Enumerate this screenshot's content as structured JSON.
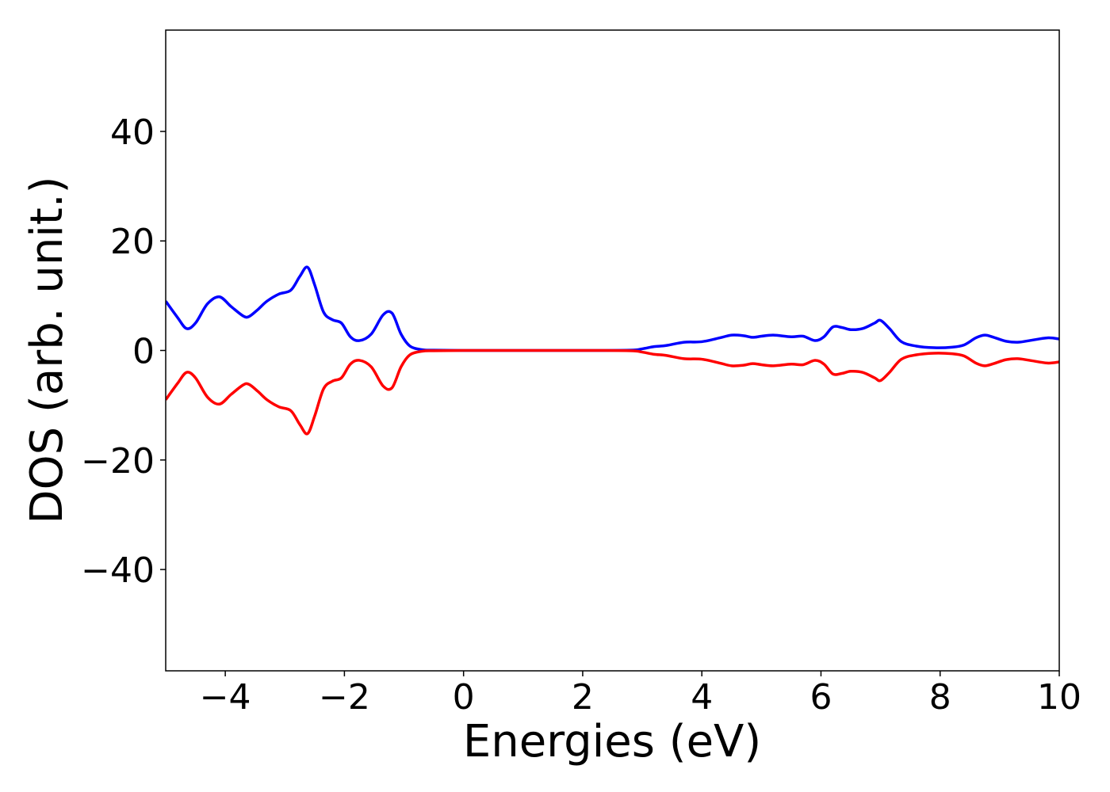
{
  "chart_data": {
    "type": "line",
    "title": "",
    "xlabel": "Energies (eV)",
    "ylabel": "DOS (arb. unit.)",
    "xlim": [
      -5,
      10
    ],
    "ylim": [
      -58.5,
      58.5
    ],
    "xticks": [
      -4,
      -2,
      0,
      2,
      4,
      6,
      8,
      10
    ],
    "xtick_labels": [
      "−4",
      "−2",
      "0",
      "2",
      "4",
      "6",
      "8",
      "10"
    ],
    "yticks": [
      -40,
      -20,
      0,
      20,
      40
    ],
    "ytick_labels": [
      "−40",
      "−20",
      "0",
      "20",
      "40"
    ],
    "grid": false,
    "legend": "none",
    "series": [
      {
        "color": "#0000ff",
        "x": [
          -5.0,
          -4.8,
          -4.65,
          -4.5,
          -4.3,
          -4.1,
          -3.9,
          -3.7,
          -3.6,
          -3.45,
          -3.3,
          -3.1,
          -2.9,
          -2.75,
          -2.62,
          -2.5,
          -2.35,
          -2.2,
          -2.05,
          -1.9,
          -1.75,
          -1.55,
          -1.35,
          -1.2,
          -1.05,
          -0.9,
          -0.7,
          -0.5,
          0.0,
          1.0,
          2.0,
          2.8,
          3.0,
          3.2,
          3.4,
          3.7,
          4.0,
          4.3,
          4.5,
          4.7,
          4.85,
          5.0,
          5.2,
          5.5,
          5.7,
          5.9,
          6.05,
          6.2,
          6.35,
          6.5,
          6.7,
          6.9,
          7.0,
          7.15,
          7.35,
          7.6,
          7.9,
          8.2,
          8.4,
          8.6,
          8.75,
          8.9,
          9.1,
          9.3,
          9.5,
          9.8,
          10.0
        ],
        "values": [
          9.0,
          6.0,
          4.0,
          5.0,
          8.5,
          9.8,
          8.0,
          6.3,
          6.2,
          7.5,
          9.0,
          10.3,
          11.0,
          13.5,
          15.2,
          12.0,
          7.0,
          5.6,
          5.0,
          2.5,
          1.8,
          3.0,
          6.5,
          6.8,
          3.0,
          0.8,
          0.15,
          0.05,
          0.0,
          0.0,
          0.0,
          0.05,
          0.3,
          0.7,
          0.9,
          1.5,
          1.6,
          2.3,
          2.8,
          2.7,
          2.4,
          2.6,
          2.8,
          2.5,
          2.6,
          1.8,
          2.5,
          4.3,
          4.2,
          3.8,
          4.0,
          5.0,
          5.5,
          4.0,
          1.6,
          0.8,
          0.5,
          0.6,
          1.0,
          2.3,
          2.8,
          2.4,
          1.7,
          1.5,
          1.8,
          2.3,
          2.1
        ]
      },
      {
        "color": "#ff0000",
        "x": [
          -5.0,
          -4.8,
          -4.65,
          -4.5,
          -4.3,
          -4.1,
          -3.9,
          -3.7,
          -3.6,
          -3.45,
          -3.3,
          -3.1,
          -2.9,
          -2.75,
          -2.62,
          -2.5,
          -2.35,
          -2.2,
          -2.05,
          -1.9,
          -1.75,
          -1.55,
          -1.35,
          -1.2,
          -1.05,
          -0.9,
          -0.7,
          -0.5,
          0.0,
          1.0,
          2.0,
          2.8,
          3.0,
          3.2,
          3.4,
          3.7,
          4.0,
          4.3,
          4.5,
          4.7,
          4.85,
          5.0,
          5.2,
          5.5,
          5.7,
          5.9,
          6.05,
          6.2,
          6.35,
          6.5,
          6.7,
          6.9,
          7.0,
          7.15,
          7.35,
          7.6,
          7.9,
          8.2,
          8.4,
          8.6,
          8.75,
          8.9,
          9.1,
          9.3,
          9.5,
          9.8,
          10.0
        ],
        "values": [
          -9.0,
          -6.0,
          -4.0,
          -5.0,
          -8.5,
          -9.8,
          -8.0,
          -6.3,
          -6.2,
          -7.5,
          -9.0,
          -10.3,
          -11.0,
          -13.5,
          -15.2,
          -12.0,
          -7.0,
          -5.6,
          -5.0,
          -2.5,
          -1.8,
          -3.0,
          -6.5,
          -6.8,
          -3.0,
          -0.8,
          -0.15,
          -0.05,
          0.0,
          0.0,
          0.0,
          -0.05,
          -0.3,
          -0.7,
          -0.9,
          -1.5,
          -1.6,
          -2.3,
          -2.8,
          -2.7,
          -2.4,
          -2.6,
          -2.8,
          -2.5,
          -2.6,
          -1.8,
          -2.5,
          -4.3,
          -4.2,
          -3.8,
          -4.0,
          -5.0,
          -5.5,
          -4.0,
          -1.6,
          -0.8,
          -0.5,
          -0.6,
          -1.0,
          -2.3,
          -2.8,
          -2.4,
          -1.7,
          -1.5,
          -1.8,
          -2.3,
          -2.1
        ]
      }
    ]
  }
}
